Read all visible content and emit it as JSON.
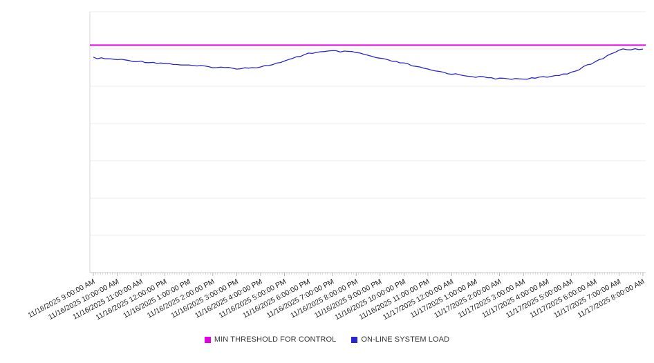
{
  "chart_data": {
    "type": "line",
    "title": "",
    "xlabel": "",
    "ylabel": "",
    "ylim": [
      0,
      100
    ],
    "grid": "horizontal",
    "legend_position": "bottom",
    "y_tick_labels_visible": false,
    "x_labels": [
      "11/16/2025 9:00:00 AM",
      "11/16/2025 10:00:00 AM",
      "11/16/2025 11:00:00 AM",
      "11/16/2025 12:00:00 PM",
      "11/16/2025 1:00:00 PM",
      "11/16/2025 2:00:00 PM",
      "11/16/2025 3:00:00 PM",
      "11/16/2025 4:00:00 PM",
      "11/16/2025 5:00:00 PM",
      "11/16/2025 6:00:00 PM",
      "11/16/2025 7:00:00 PM",
      "11/16/2025 8:00:00 PM",
      "11/16/2025 9:00:00 PM",
      "11/16/2025 10:00:00 PM",
      "11/16/2025 11:00:00 PM",
      "11/17/2025 12:00:00 AM",
      "11/17/2025 1:00:00 AM",
      "11/17/2025 2:00:00 AM",
      "11/17/2025 3:00:00 AM",
      "11/17/2025 4:00:00 AM",
      "11/17/2025 5:00:00 AM",
      "11/17/2025 6:00:00 AM",
      "11/17/2025 7:00:00 AM",
      "11/17/2025 8:00:00 AM"
    ],
    "series": [
      {
        "name": "MIN THRESHOLD FOR CONTROL",
        "color": "#e100e1",
        "style": "constant",
        "constant": 87.2
      },
      {
        "name": "ON-LINE SYSTEM LOAD",
        "color": "#2727cd",
        "style": "line",
        "values": [
          82.3,
          81.7,
          80.9,
          80.2,
          79.4,
          78.8,
          78.3,
          78.8,
          80.9,
          84.1,
          84.9,
          84.4,
          82.0,
          80.2,
          77.8,
          76.2,
          75.1,
          74.3,
          74.3,
          74.9,
          76.7,
          80.7,
          85.4,
          85.7
        ]
      }
    ]
  },
  "legend": {
    "items": [
      {
        "label": "MIN THRESHOLD FOR CONTROL",
        "color": "#e100e1"
      },
      {
        "label": "ON-LINE SYSTEM LOAD",
        "color": "#2727cd"
      }
    ]
  },
  "colors": {
    "gridline": "#ededed",
    "axis": "#c9c9c9",
    "tick": "#aaaaaa",
    "label_text": "#222222"
  }
}
